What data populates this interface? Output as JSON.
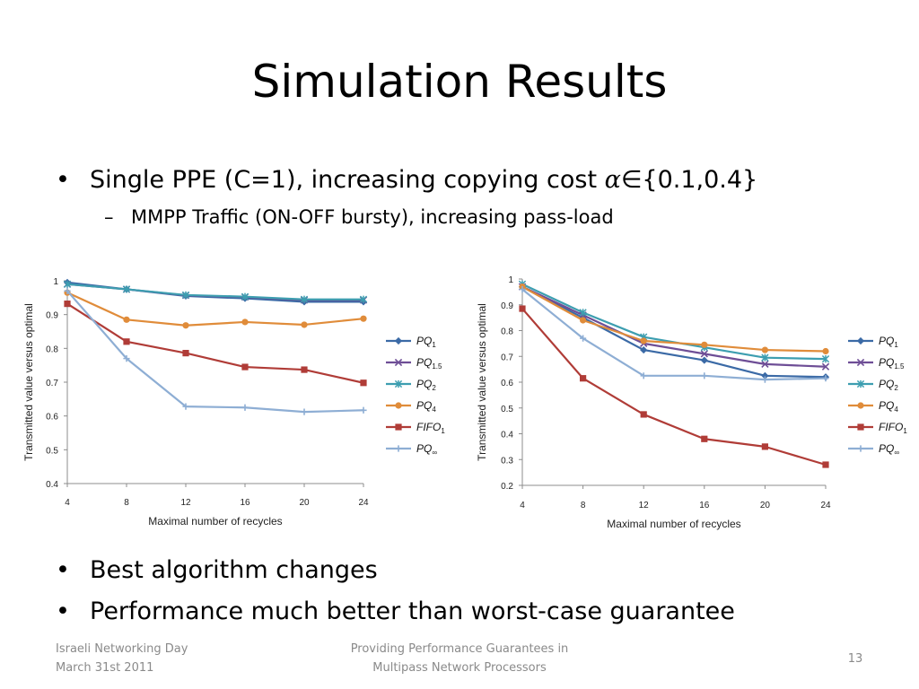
{
  "slide": {
    "title": "Simulation Results",
    "bullet1": {
      "text_before": "Single PPE (C=1), increasing copying cost ",
      "alpha": "α",
      "member": "∈",
      "text_after": "{0.1,0.4}"
    },
    "sub1": "MMPP Traffic (ON-OFF bursty), increasing pass-load",
    "bullet2": "Best algorithm changes",
    "bullet3": "Performance much better than worst-case guarantee",
    "footer_left_1": "Israeli Networking Day",
    "footer_left_2": "March 31st 2011",
    "footer_center_1": "Providing Performance Guarantees in",
    "footer_center_2": "Multipass Network Processors",
    "page_number": "13"
  },
  "chart_data": [
    {
      "type": "line",
      "xlabel": "Maximal number of recycles",
      "ylabel": "Transmitted value versus optimal",
      "x": [
        4,
        8,
        12,
        16,
        20,
        24
      ],
      "ylim": [
        0.4,
        1
      ],
      "yticks": [
        0.4,
        0.5,
        0.6,
        0.7,
        0.8,
        0.9,
        1
      ],
      "ytick_labels": [
        "0.4",
        "0.5",
        "0.6",
        "0.7",
        "0.8",
        "0.9",
        "1"
      ],
      "grid": false,
      "legend_position": "right",
      "series": [
        {
          "name": "PQ",
          "subscript": "1",
          "color": "#3b6aa6",
          "marker": "diamond",
          "values": [
            0.995,
            0.975,
            0.955,
            0.948,
            0.938,
            0.938
          ]
        },
        {
          "name": "PQ",
          "subscript": "1.5",
          "color": "#6e4e96",
          "marker": "x",
          "values": [
            0.99,
            0.975,
            0.957,
            0.952,
            0.943,
            0.943
          ]
        },
        {
          "name": "PQ",
          "subscript": "2",
          "color": "#3d9eb0",
          "marker": "star",
          "values": [
            0.99,
            0.975,
            0.958,
            0.953,
            0.945,
            0.945
          ]
        },
        {
          "name": "PQ",
          "subscript": "4",
          "color": "#e08c3a",
          "marker": "circle",
          "values": [
            0.965,
            0.885,
            0.868,
            0.878,
            0.87,
            0.888
          ]
        },
        {
          "name": "FIFO",
          "subscript": "1",
          "color": "#b03c37",
          "marker": "square",
          "values": [
            0.932,
            0.82,
            0.786,
            0.745,
            0.737,
            0.698
          ]
        },
        {
          "name": "PQ",
          "subscript": "∞",
          "color": "#8eaed4",
          "marker": "plus",
          "values": [
            0.97,
            0.77,
            0.628,
            0.625,
            0.612,
            0.617
          ]
        }
      ]
    },
    {
      "type": "line",
      "xlabel": "Maximal number of recycles",
      "ylabel": "Transmitted value versus optimal",
      "x": [
        4,
        8,
        12,
        16,
        20,
        24
      ],
      "ylim": [
        0.2,
        1
      ],
      "yticks": [
        0.2,
        0.3,
        0.4,
        0.5,
        0.6,
        0.7,
        0.8,
        0.9,
        1
      ],
      "ytick_labels": [
        "0.2",
        "0.3",
        "0.4",
        "0.5",
        "0.6",
        "0.7",
        "0.8",
        "0.9",
        "1"
      ],
      "grid": false,
      "legend_position": "right",
      "series": [
        {
          "name": "PQ",
          "subscript": "1",
          "color": "#3b6aa6",
          "marker": "diamond",
          "values": [
            0.97,
            0.85,
            0.725,
            0.685,
            0.625,
            0.62
          ]
        },
        {
          "name": "PQ",
          "subscript": "1.5",
          "color": "#6e4e96",
          "marker": "x",
          "values": [
            0.97,
            0.86,
            0.75,
            0.71,
            0.67,
            0.66
          ]
        },
        {
          "name": "PQ",
          "subscript": "2",
          "color": "#3d9eb0",
          "marker": "star",
          "values": [
            0.98,
            0.87,
            0.775,
            0.735,
            0.695,
            0.69
          ]
        },
        {
          "name": "PQ",
          "subscript": "4",
          "color": "#e08c3a",
          "marker": "circle",
          "values": [
            0.97,
            0.84,
            0.76,
            0.745,
            0.725,
            0.72
          ]
        },
        {
          "name": "FIFO",
          "subscript": "1",
          "color": "#b03c37",
          "marker": "square",
          "values": [
            0.885,
            0.615,
            0.475,
            0.38,
            0.35,
            0.28
          ]
        },
        {
          "name": "PQ",
          "subscript": "∞",
          "color": "#8eaed4",
          "marker": "plus",
          "values": [
            0.96,
            0.77,
            0.625,
            0.625,
            0.61,
            0.615
          ]
        }
      ]
    }
  ]
}
